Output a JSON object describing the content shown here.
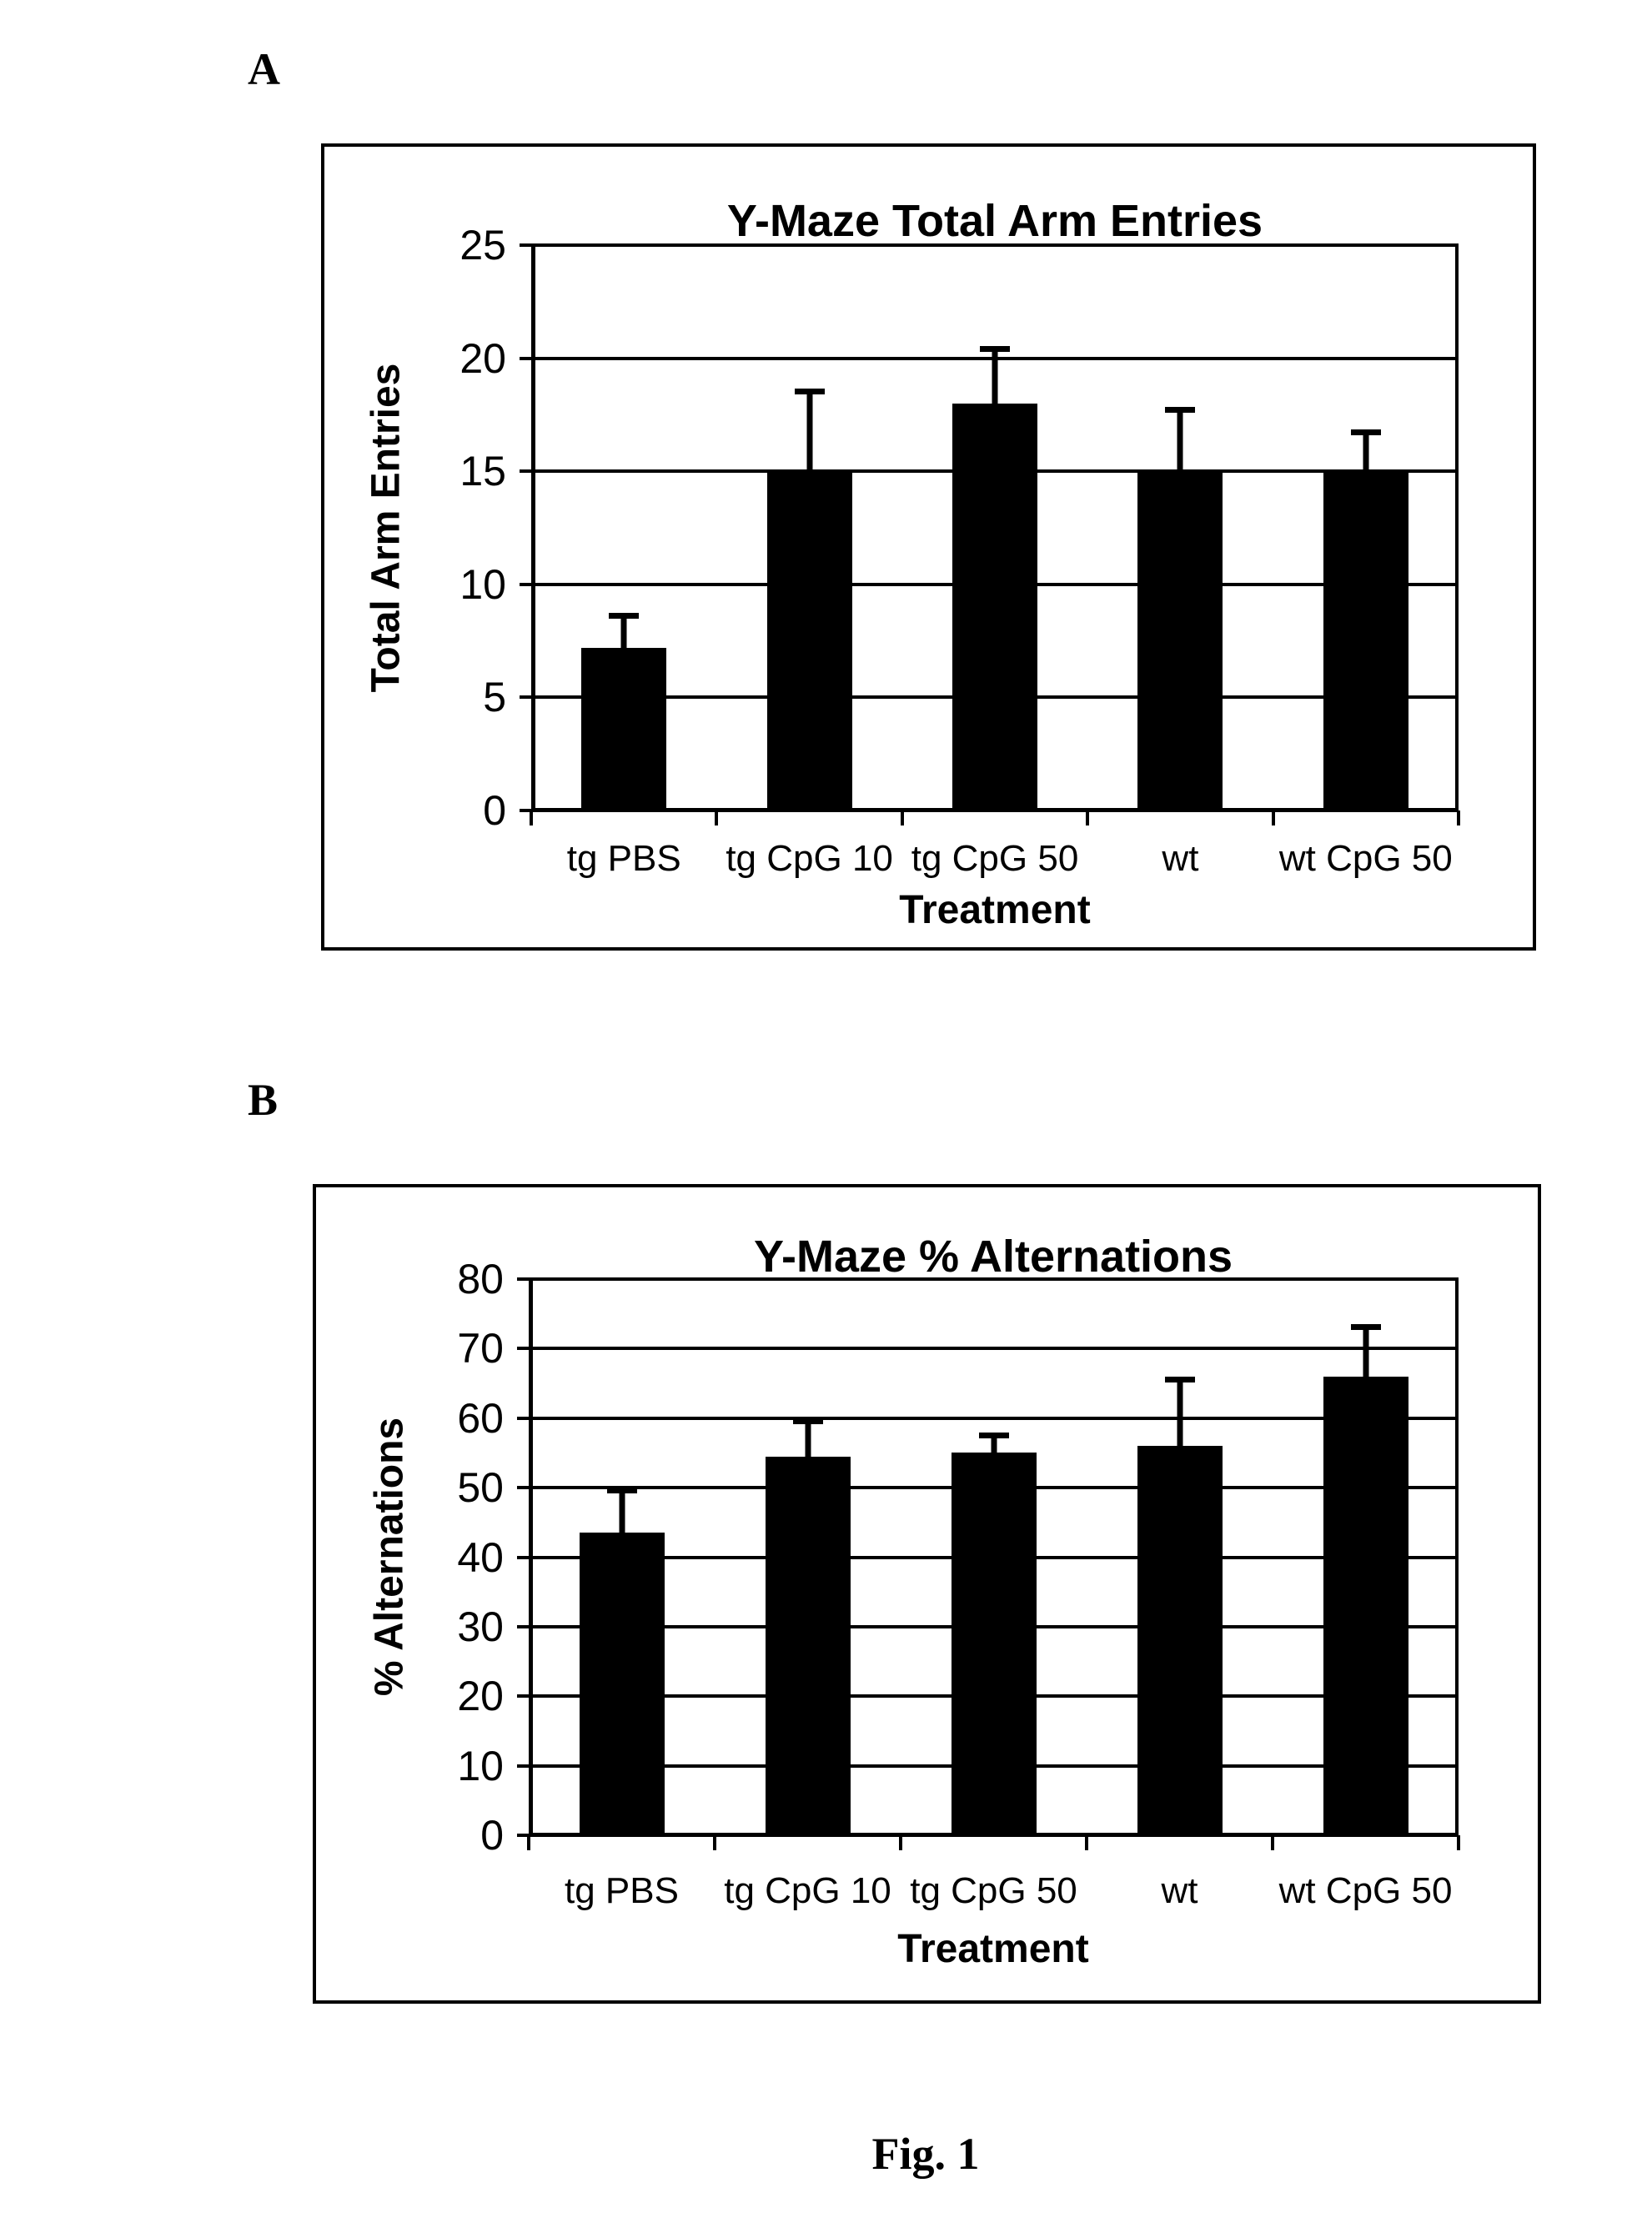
{
  "figure": {
    "panel_a_label": "A",
    "panel_b_label": "B",
    "caption": "Fig. 1"
  },
  "chart_data": [
    {
      "type": "bar",
      "title": "Y-Maze Total Arm Entries",
      "xlabel": "Treatment",
      "ylabel": "Total Arm Entries",
      "categories": [
        "tg PBS",
        "tg CpG 10",
        "tg CpG 50",
        "wt",
        "wt CpG 50"
      ],
      "values": [
        7.2,
        15,
        18,
        15,
        15
      ],
      "errors": [
        1.4,
        3.5,
        2.4,
        2.7,
        1.7
      ],
      "ylim": [
        0,
        25
      ],
      "yticks": [
        0,
        5,
        10,
        15,
        20,
        25
      ],
      "grid": true,
      "legend": false,
      "bar_color": "#000000"
    },
    {
      "type": "bar",
      "title": "Y-Maze % Alternations",
      "xlabel": "Treatment",
      "ylabel": "% Alternations",
      "categories": [
        "tg PBS",
        "tg CpG 10",
        "tg CpG 50",
        "wt",
        "wt CpG 50"
      ],
      "values": [
        43.5,
        54.5,
        55,
        56,
        66
      ],
      "errors": [
        6,
        5,
        2.5,
        9.5,
        7
      ],
      "ylim": [
        0,
        80
      ],
      "yticks": [
        0,
        10,
        20,
        30,
        40,
        50,
        60,
        70,
        80
      ],
      "grid": true,
      "legend": false,
      "bar_color": "#000000"
    }
  ]
}
